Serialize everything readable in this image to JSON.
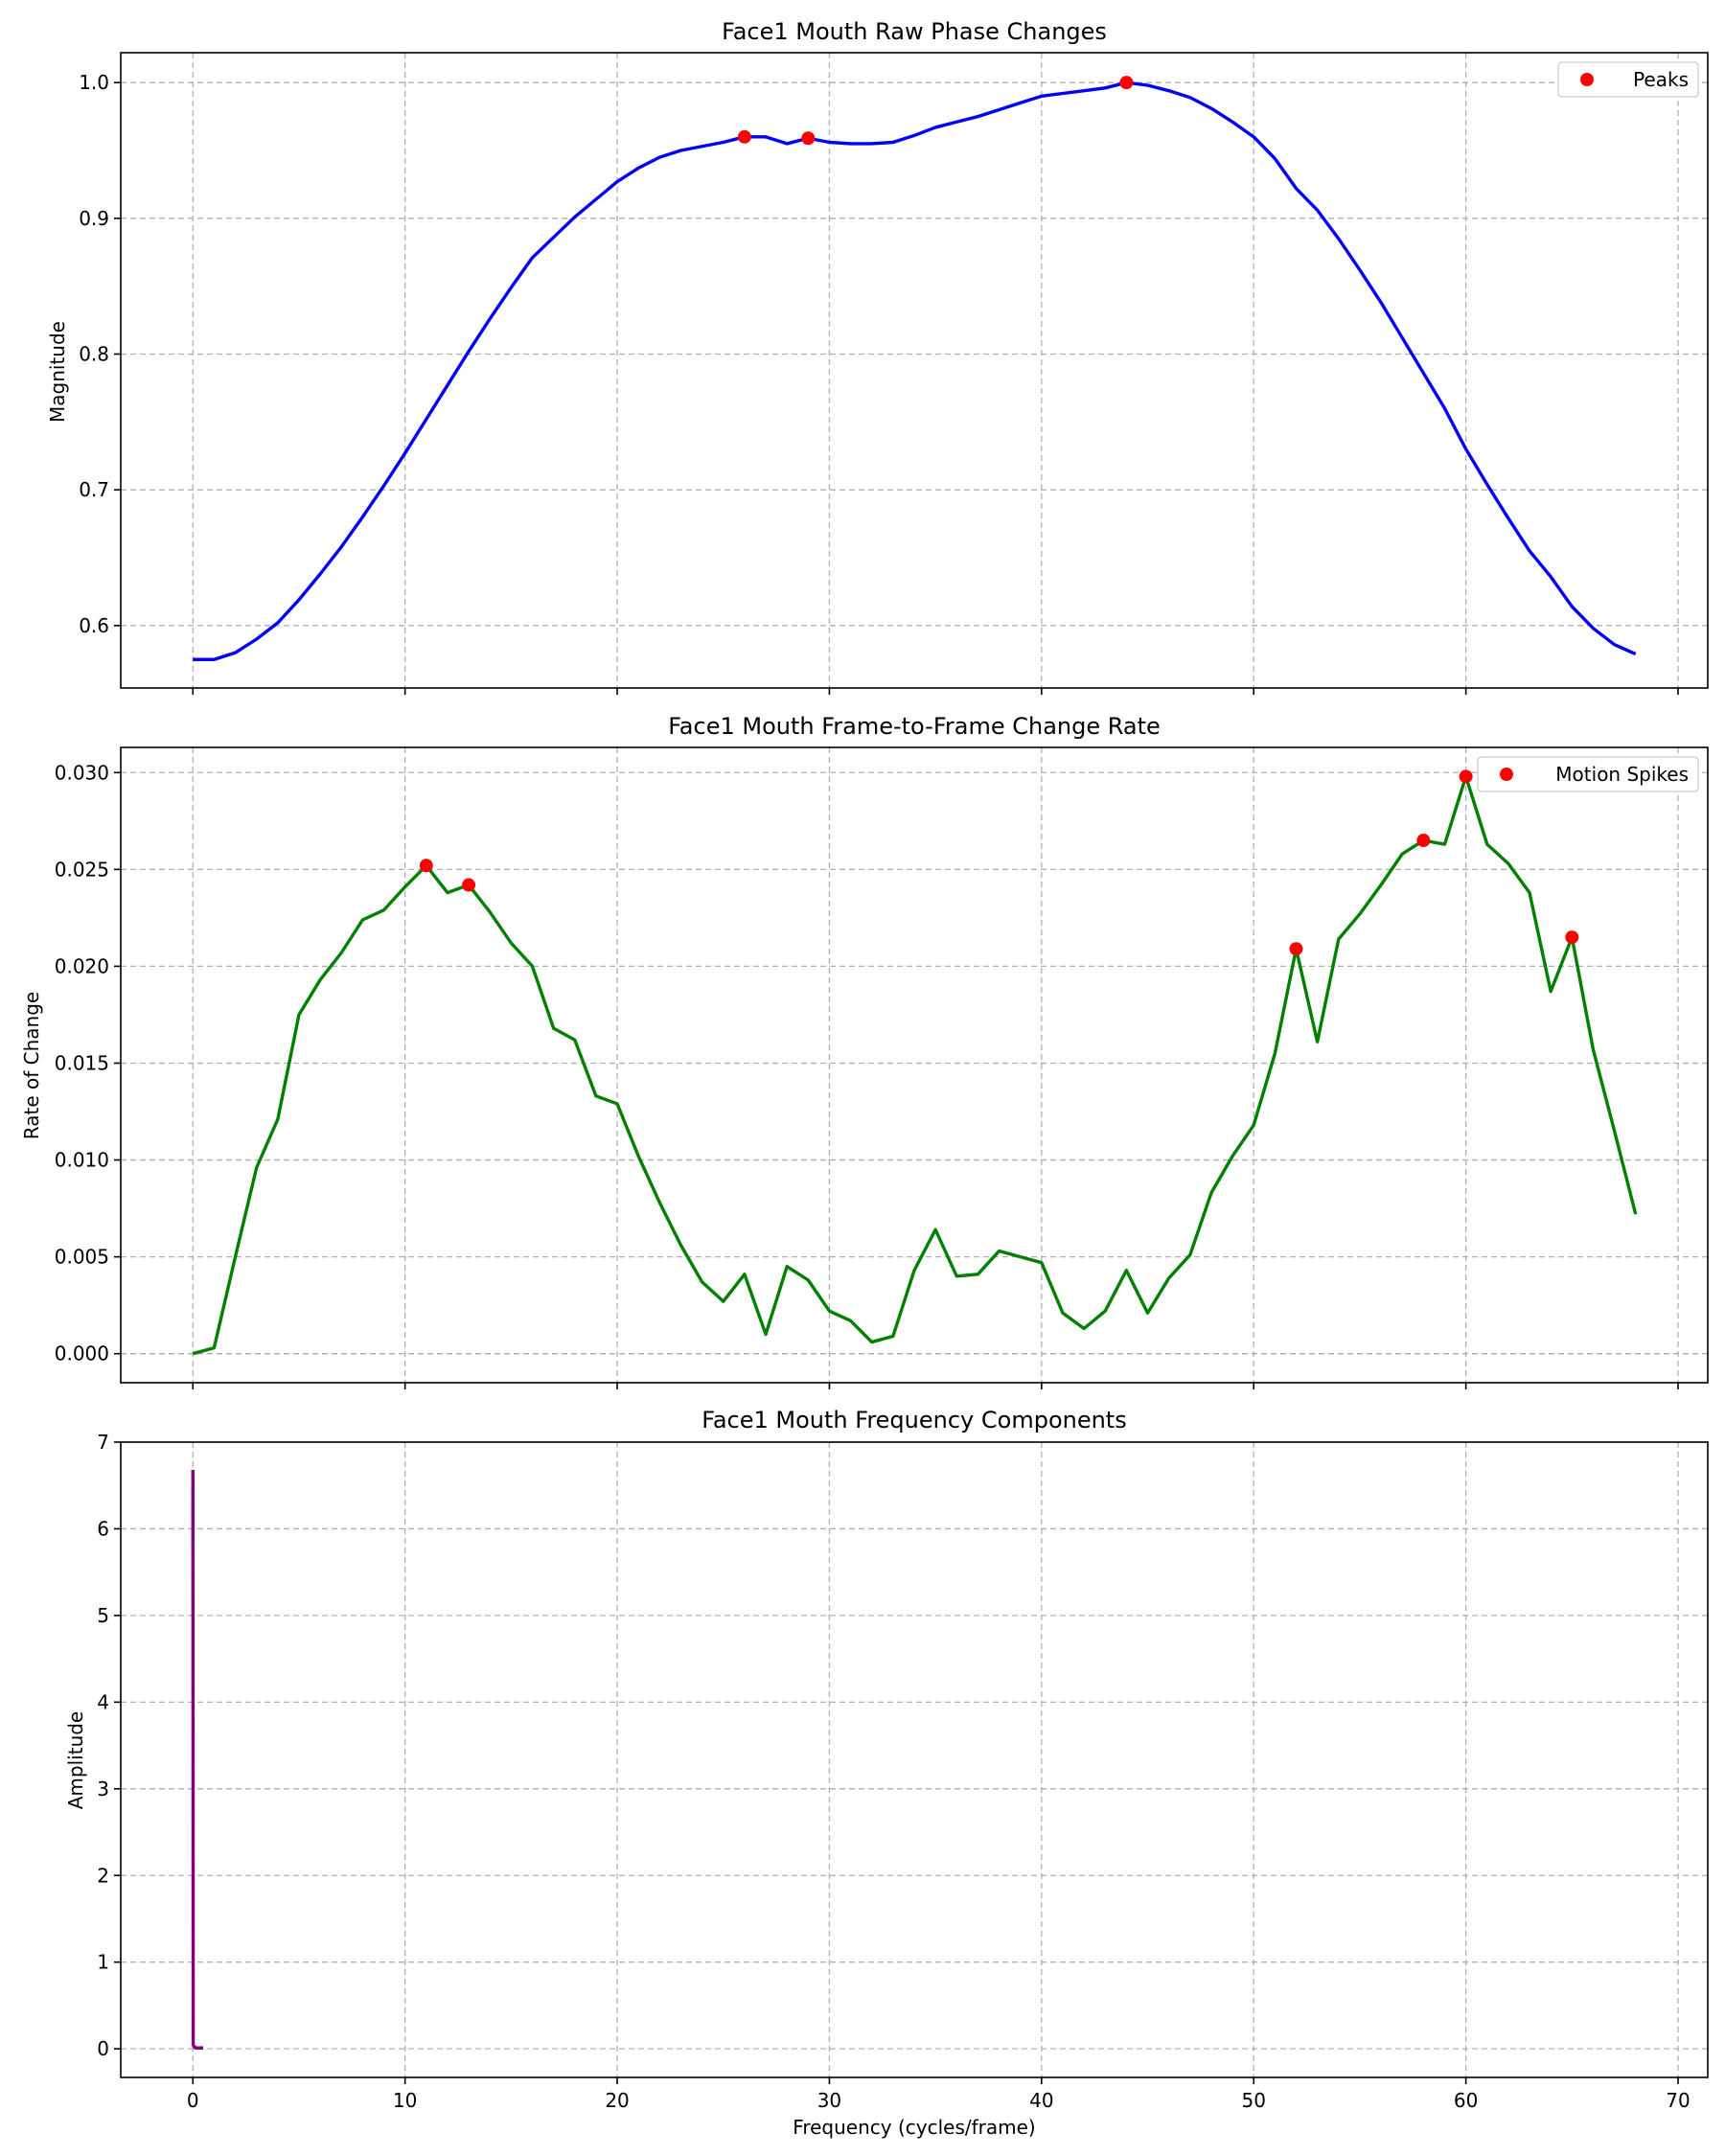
{
  "chart_data": [
    {
      "type": "line",
      "title": "Face1 Mouth Raw Phase Changes",
      "xlabel": "",
      "ylabel": "Magnitude",
      "xlim": [
        -3.4,
        71.4
      ],
      "ylim": [
        0.554,
        1.022
      ],
      "xticks": [
        0,
        10,
        20,
        30,
        40,
        50,
        60,
        70
      ],
      "show_xtick_labels": false,
      "yticks": [
        0.6,
        0.7,
        0.8,
        0.9,
        1.0
      ],
      "ytick_labels": [
        "0.6",
        "0.7",
        "0.8",
        "0.9",
        "1.0"
      ],
      "grid": true,
      "legend": "top-right",
      "line_color": "#0000ff",
      "marker_color": "#ff0000",
      "x": [
        0,
        1,
        2,
        3,
        4,
        5,
        6,
        7,
        8,
        9,
        10,
        11,
        12,
        13,
        14,
        15,
        16,
        17,
        18,
        19,
        20,
        21,
        22,
        23,
        24,
        25,
        26,
        27,
        28,
        29,
        30,
        31,
        32,
        33,
        34,
        35,
        36,
        37,
        38,
        39,
        40,
        41,
        42,
        43,
        44,
        45,
        46,
        47,
        48,
        49,
        50,
        51,
        52,
        53,
        54,
        55,
        56,
        57,
        58,
        59,
        60,
        61,
        62,
        63,
        64,
        65,
        66,
        67,
        68
      ],
      "y": [
        0.575,
        0.575,
        0.58,
        0.59,
        0.602,
        0.619,
        0.638,
        0.658,
        0.68,
        0.703,
        0.727,
        0.752,
        0.777,
        0.802,
        0.826,
        0.849,
        0.871,
        0.886,
        0.901,
        0.914,
        0.927,
        0.937,
        0.945,
        0.95,
        0.953,
        0.956,
        0.96,
        0.96,
        0.955,
        0.959,
        0.956,
        0.955,
        0.955,
        0.956,
        0.961,
        0.967,
        0.971,
        0.975,
        0.98,
        0.985,
        0.99,
        0.992,
        0.994,
        0.996,
        1.0,
        0.998,
        0.994,
        0.989,
        0.981,
        0.971,
        0.96,
        0.944,
        0.922,
        0.906,
        0.885,
        0.862,
        0.838,
        0.812,
        0.786,
        0.76,
        0.73,
        0.704,
        0.679,
        0.655,
        0.636,
        0.614,
        0.598,
        0.586,
        0.579
      ],
      "markers": {
        "name": "Peaks",
        "x": [
          26,
          29,
          44
        ],
        "y": [
          0.96,
          0.959,
          1.0
        ]
      }
    },
    {
      "type": "line",
      "title": "Face1 Mouth Frame-to-Frame Change Rate",
      "xlabel": "",
      "ylabel": "Rate of Change",
      "xlim": [
        -3.4,
        71.4
      ],
      "ylim": [
        -0.0015,
        0.0313
      ],
      "xticks": [
        0,
        10,
        20,
        30,
        40,
        50,
        60,
        70
      ],
      "show_xtick_labels": false,
      "yticks": [
        0.0,
        0.005,
        0.01,
        0.015,
        0.02,
        0.025,
        0.03
      ],
      "ytick_labels": [
        "0.000",
        "0.005",
        "0.010",
        "0.015",
        "0.020",
        "0.025",
        "0.030"
      ],
      "grid": true,
      "legend": "top-right",
      "line_color": "#008000",
      "marker_color": "#ff0000",
      "x": [
        0,
        1,
        2,
        3,
        4,
        5,
        6,
        7,
        8,
        9,
        10,
        11,
        12,
        13,
        14,
        15,
        16,
        17,
        18,
        19,
        20,
        21,
        22,
        23,
        24,
        25,
        26,
        27,
        28,
        29,
        30,
        31,
        32,
        33,
        34,
        35,
        36,
        37,
        38,
        39,
        40,
        41,
        42,
        43,
        44,
        45,
        46,
        47,
        48,
        49,
        50,
        51,
        52,
        53,
        54,
        55,
        56,
        57,
        58,
        59,
        60,
        61,
        62,
        63,
        64,
        65,
        66,
        67,
        68
      ],
      "y": [
        0.0,
        0.0003,
        0.005,
        0.0096,
        0.0121,
        0.0175,
        0.0193,
        0.0207,
        0.0224,
        0.0229,
        0.0241,
        0.0252,
        0.0238,
        0.0242,
        0.0228,
        0.0212,
        0.02,
        0.0168,
        0.0162,
        0.0133,
        0.0129,
        0.0102,
        0.0078,
        0.0056,
        0.0037,
        0.0027,
        0.0041,
        0.001,
        0.0045,
        0.0038,
        0.0022,
        0.0017,
        0.0006,
        0.0009,
        0.0043,
        0.0064,
        0.004,
        0.0041,
        0.0053,
        0.005,
        0.0047,
        0.0021,
        0.0013,
        0.0022,
        0.0043,
        0.0021,
        0.0039,
        0.0051,
        0.0083,
        0.0102,
        0.0118,
        0.0155,
        0.0209,
        0.0161,
        0.0214,
        0.0227,
        0.0242,
        0.0258,
        0.0265,
        0.0263,
        0.0298,
        0.0263,
        0.0253,
        0.0238,
        0.0187,
        0.0215,
        0.0157,
        0.0115,
        0.0072
      ],
      "markers": {
        "name": "Motion Spikes",
        "x": [
          11,
          13,
          52,
          58,
          60,
          65
        ],
        "y": [
          0.0252,
          0.0242,
          0.0209,
          0.0265,
          0.0298,
          0.0215
        ]
      }
    },
    {
      "type": "line",
      "title": "Face1 Mouth Frequency Components",
      "xlabel": "Frequency (cycles/frame)",
      "ylabel": "Amplitude",
      "xlim": [
        -3.4,
        71.4
      ],
      "ylim": [
        -0.33,
        7.0
      ],
      "xticks": [
        0,
        10,
        20,
        30,
        40,
        50,
        60,
        70
      ],
      "xtick_labels": [
        "0",
        "10",
        "20",
        "30",
        "40",
        "50",
        "60",
        "70"
      ],
      "show_xtick_labels": true,
      "yticks": [
        0,
        1,
        2,
        3,
        4,
        5,
        6,
        7
      ],
      "ytick_labels": [
        "0",
        "1",
        "2",
        "3",
        "4",
        "5",
        "6",
        "7"
      ],
      "grid": true,
      "line_color": "#800080",
      "x": [
        0.0,
        0.0147,
        0.0294,
        0.0441,
        0.0588,
        0.0735,
        0.0882,
        0.1029,
        0.1176,
        0.1324,
        0.1471,
        0.1618,
        0.1765,
        0.1912,
        0.2059,
        0.2206,
        0.2353,
        0.25,
        0.2647,
        0.2794,
        0.2941,
        0.3088,
        0.3235,
        0.3382,
        0.3529,
        0.3676,
        0.3824,
        0.3971,
        0.4118,
        0.4265,
        0.4412,
        0.4559,
        0.4706,
        0.4853
      ],
      "y": [
        6.68,
        0.05,
        0.04,
        0.03,
        0.02,
        0.02,
        0.02,
        0.02,
        0.01,
        0.01,
        0.01,
        0.01,
        0.01,
        0.01,
        0.01,
        0.01,
        0.01,
        0.01,
        0.01,
        0.01,
        0.01,
        0.01,
        0.01,
        0.01,
        0.01,
        0.01,
        0.01,
        0.01,
        0.01,
        0.01,
        0.01,
        0.01,
        0.01,
        0.01
      ]
    }
  ]
}
